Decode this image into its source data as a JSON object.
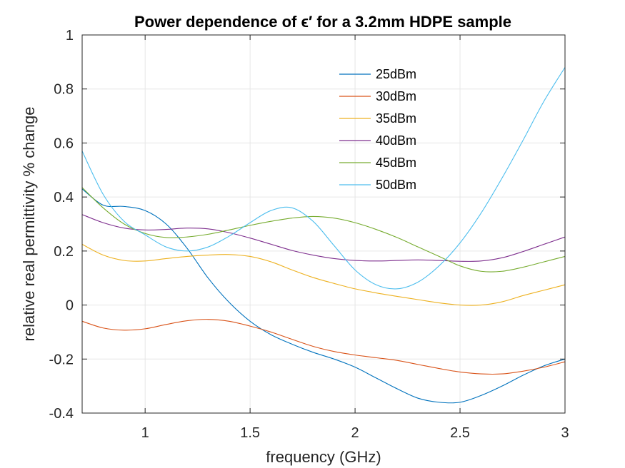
{
  "chart_data": {
    "type": "line",
    "title": "Power dependence of ϵ′ for a 3.2mm HDPE sample",
    "xlabel": "frequency (GHz)",
    "ylabel": "relative real permittivity % change",
    "xlim": [
      0.7,
      3.0
    ],
    "ylim": [
      -0.4,
      1.0
    ],
    "xticks": [
      1,
      1.5,
      2,
      2.5,
      3
    ],
    "xtick_labels": [
      "1",
      "1.5",
      "2",
      "2.5",
      "3"
    ],
    "yticks": [
      -0.4,
      -0.2,
      0,
      0.2,
      0.4,
      0.6,
      0.8,
      1
    ],
    "ytick_labels": [
      "-0.4",
      "-0.2",
      "0",
      "0.2",
      "0.4",
      "0.6",
      "0.8",
      "1"
    ],
    "grid": true,
    "legend_position": "top-right inside",
    "series": [
      {
        "name": "25dBm",
        "color": "#0072BD",
        "x": [
          0.7,
          0.8,
          0.9,
          1.0,
          1.1,
          1.2,
          1.3,
          1.4,
          1.5,
          1.6,
          1.7,
          1.8,
          1.9,
          2.0,
          2.1,
          2.2,
          2.3,
          2.4,
          2.5,
          2.6,
          2.7,
          2.8,
          2.9,
          3.0
        ],
        "y": [
          0.43,
          0.37,
          0.365,
          0.35,
          0.3,
          0.21,
          0.1,
          0.01,
          -0.06,
          -0.11,
          -0.145,
          -0.175,
          -0.2,
          -0.23,
          -0.27,
          -0.31,
          -0.345,
          -0.36,
          -0.36,
          -0.335,
          -0.3,
          -0.26,
          -0.225,
          -0.2
        ]
      },
      {
        "name": "30dBm",
        "color": "#D95319",
        "x": [
          0.7,
          0.8,
          0.9,
          1.0,
          1.1,
          1.2,
          1.3,
          1.4,
          1.5,
          1.6,
          1.7,
          1.8,
          1.9,
          2.0,
          2.1,
          2.2,
          2.3,
          2.4,
          2.5,
          2.6,
          2.7,
          2.8,
          2.9,
          3.0
        ],
        "y": [
          -0.06,
          -0.085,
          -0.093,
          -0.088,
          -0.072,
          -0.058,
          -0.053,
          -0.06,
          -0.078,
          -0.1,
          -0.127,
          -0.153,
          -0.172,
          -0.185,
          -0.195,
          -0.205,
          -0.22,
          -0.235,
          -0.248,
          -0.255,
          -0.255,
          -0.245,
          -0.23,
          -0.21
        ]
      },
      {
        "name": "35dBm",
        "color": "#EDB120",
        "x": [
          0.7,
          0.8,
          0.9,
          1.0,
          1.1,
          1.2,
          1.3,
          1.4,
          1.5,
          1.6,
          1.7,
          1.8,
          1.9,
          2.0,
          2.1,
          2.2,
          2.3,
          2.4,
          2.5,
          2.6,
          2.7,
          2.8,
          2.9,
          3.0
        ],
        "y": [
          0.225,
          0.185,
          0.165,
          0.163,
          0.172,
          0.18,
          0.185,
          0.187,
          0.18,
          0.16,
          0.13,
          0.102,
          0.08,
          0.06,
          0.045,
          0.032,
          0.02,
          0.008,
          0.0,
          0.0,
          0.012,
          0.035,
          0.055,
          0.075
        ]
      },
      {
        "name": "40dBm",
        "color": "#7E2F8E",
        "x": [
          0.7,
          0.8,
          0.9,
          1.0,
          1.1,
          1.2,
          1.3,
          1.4,
          1.5,
          1.6,
          1.7,
          1.8,
          1.9,
          2.0,
          2.1,
          2.2,
          2.3,
          2.4,
          2.5,
          2.6,
          2.7,
          2.8,
          2.9,
          3.0
        ],
        "y": [
          0.335,
          0.305,
          0.285,
          0.278,
          0.28,
          0.285,
          0.282,
          0.268,
          0.248,
          0.225,
          0.202,
          0.185,
          0.172,
          0.165,
          0.163,
          0.165,
          0.167,
          0.165,
          0.162,
          0.163,
          0.175,
          0.198,
          0.225,
          0.252
        ]
      },
      {
        "name": "45dBm",
        "color": "#77AC30",
        "x": [
          0.7,
          0.8,
          0.9,
          1.0,
          1.1,
          1.2,
          1.3,
          1.4,
          1.5,
          1.6,
          1.7,
          1.8,
          1.9,
          2.0,
          2.1,
          2.2,
          2.3,
          2.4,
          2.5,
          2.6,
          2.7,
          2.8,
          2.9,
          3.0
        ],
        "y": [
          0.435,
          0.36,
          0.3,
          0.265,
          0.25,
          0.252,
          0.262,
          0.278,
          0.295,
          0.31,
          0.322,
          0.328,
          0.322,
          0.305,
          0.28,
          0.25,
          0.215,
          0.18,
          0.145,
          0.125,
          0.125,
          0.14,
          0.16,
          0.18
        ]
      },
      {
        "name": "50dBm",
        "color": "#4DBEEE",
        "x": [
          0.7,
          0.8,
          0.9,
          1.0,
          1.1,
          1.2,
          1.3,
          1.4,
          1.5,
          1.6,
          1.7,
          1.8,
          1.9,
          2.0,
          2.1,
          2.2,
          2.3,
          2.4,
          2.5,
          2.6,
          2.7,
          2.8,
          2.9,
          3.0
        ],
        "y": [
          0.57,
          0.41,
          0.31,
          0.26,
          0.215,
          0.2,
          0.215,
          0.255,
          0.305,
          0.35,
          0.36,
          0.31,
          0.22,
          0.13,
          0.075,
          0.06,
          0.085,
          0.145,
          0.23,
          0.34,
          0.47,
          0.61,
          0.755,
          0.88
        ]
      }
    ]
  }
}
